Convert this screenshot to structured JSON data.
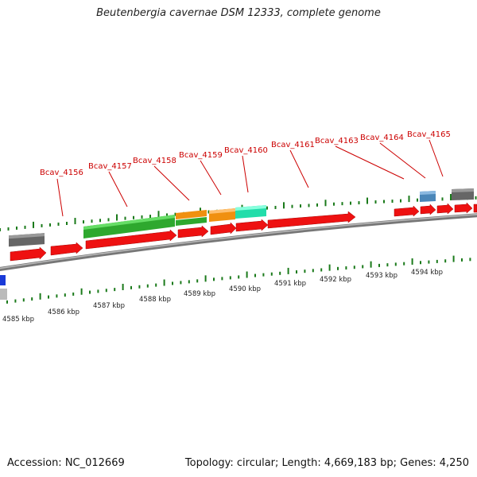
{
  "title": "Beutenbergia cavernae DSM 12333, complete genome",
  "footer": {
    "accession": "Accession: NC_012669",
    "summary": "Topology: circular; Length: 4,669,183 bp; Genes: 4,250"
  },
  "colors": {
    "forward_cds": "#ee1111",
    "green_feature": "#33bb33",
    "orange_feature": "#f09010",
    "teal_feature": "#22ddaa",
    "grey_feature": "#666666",
    "blue_feature": "#4a86b8",
    "tick": "#1a7a1a",
    "backbone": "#888888",
    "label": "#cc0000"
  },
  "gene_labels": [
    "Bcav_4156",
    "Bcav_4157",
    "Bcav_4158",
    "Bcav_4159",
    "Bcav_4160",
    "Bcav_4161",
    "Bcav_4163",
    "Bcav_4164",
    "Bcav_4165"
  ],
  "scale_labels": [
    "4585 kbp",
    "4586 kbp",
    "4587 kbp",
    "4588 kbp",
    "4589 kbp",
    "4590 kbp",
    "4591 kbp",
    "4592 kbp",
    "4593 kbp",
    "4594 kbp"
  ]
}
